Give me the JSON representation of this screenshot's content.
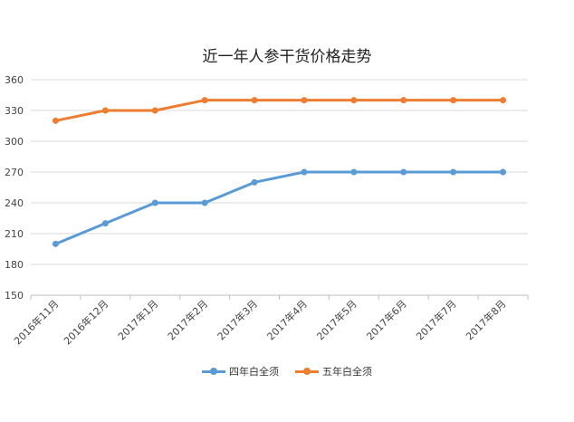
{
  "chart_data": {
    "type": "line",
    "title": "近一年人参干货价格走势",
    "categories": [
      "2016年11月",
      "2016年12月",
      "2017年1月",
      "2017年2月",
      "2017年3月",
      "2017年4月",
      "2017年5月",
      "2017年6月",
      "2017年7月",
      "2017年8月"
    ],
    "series": [
      {
        "name": "四年白全须",
        "color": "#5b9bd5",
        "values": [
          200,
          220,
          240,
          240,
          260,
          270,
          270,
          270,
          270,
          270
        ]
      },
      {
        "name": "五年白全须",
        "color": "#ed7d31",
        "values": [
          320,
          330,
          330,
          340,
          340,
          340,
          340,
          340,
          340,
          340
        ]
      }
    ],
    "ylim": [
      150,
      360
    ],
    "yticks": [
      150,
      180,
      210,
      240,
      270,
      300,
      330,
      360
    ],
    "grid": true,
    "legend_position": "bottom"
  }
}
